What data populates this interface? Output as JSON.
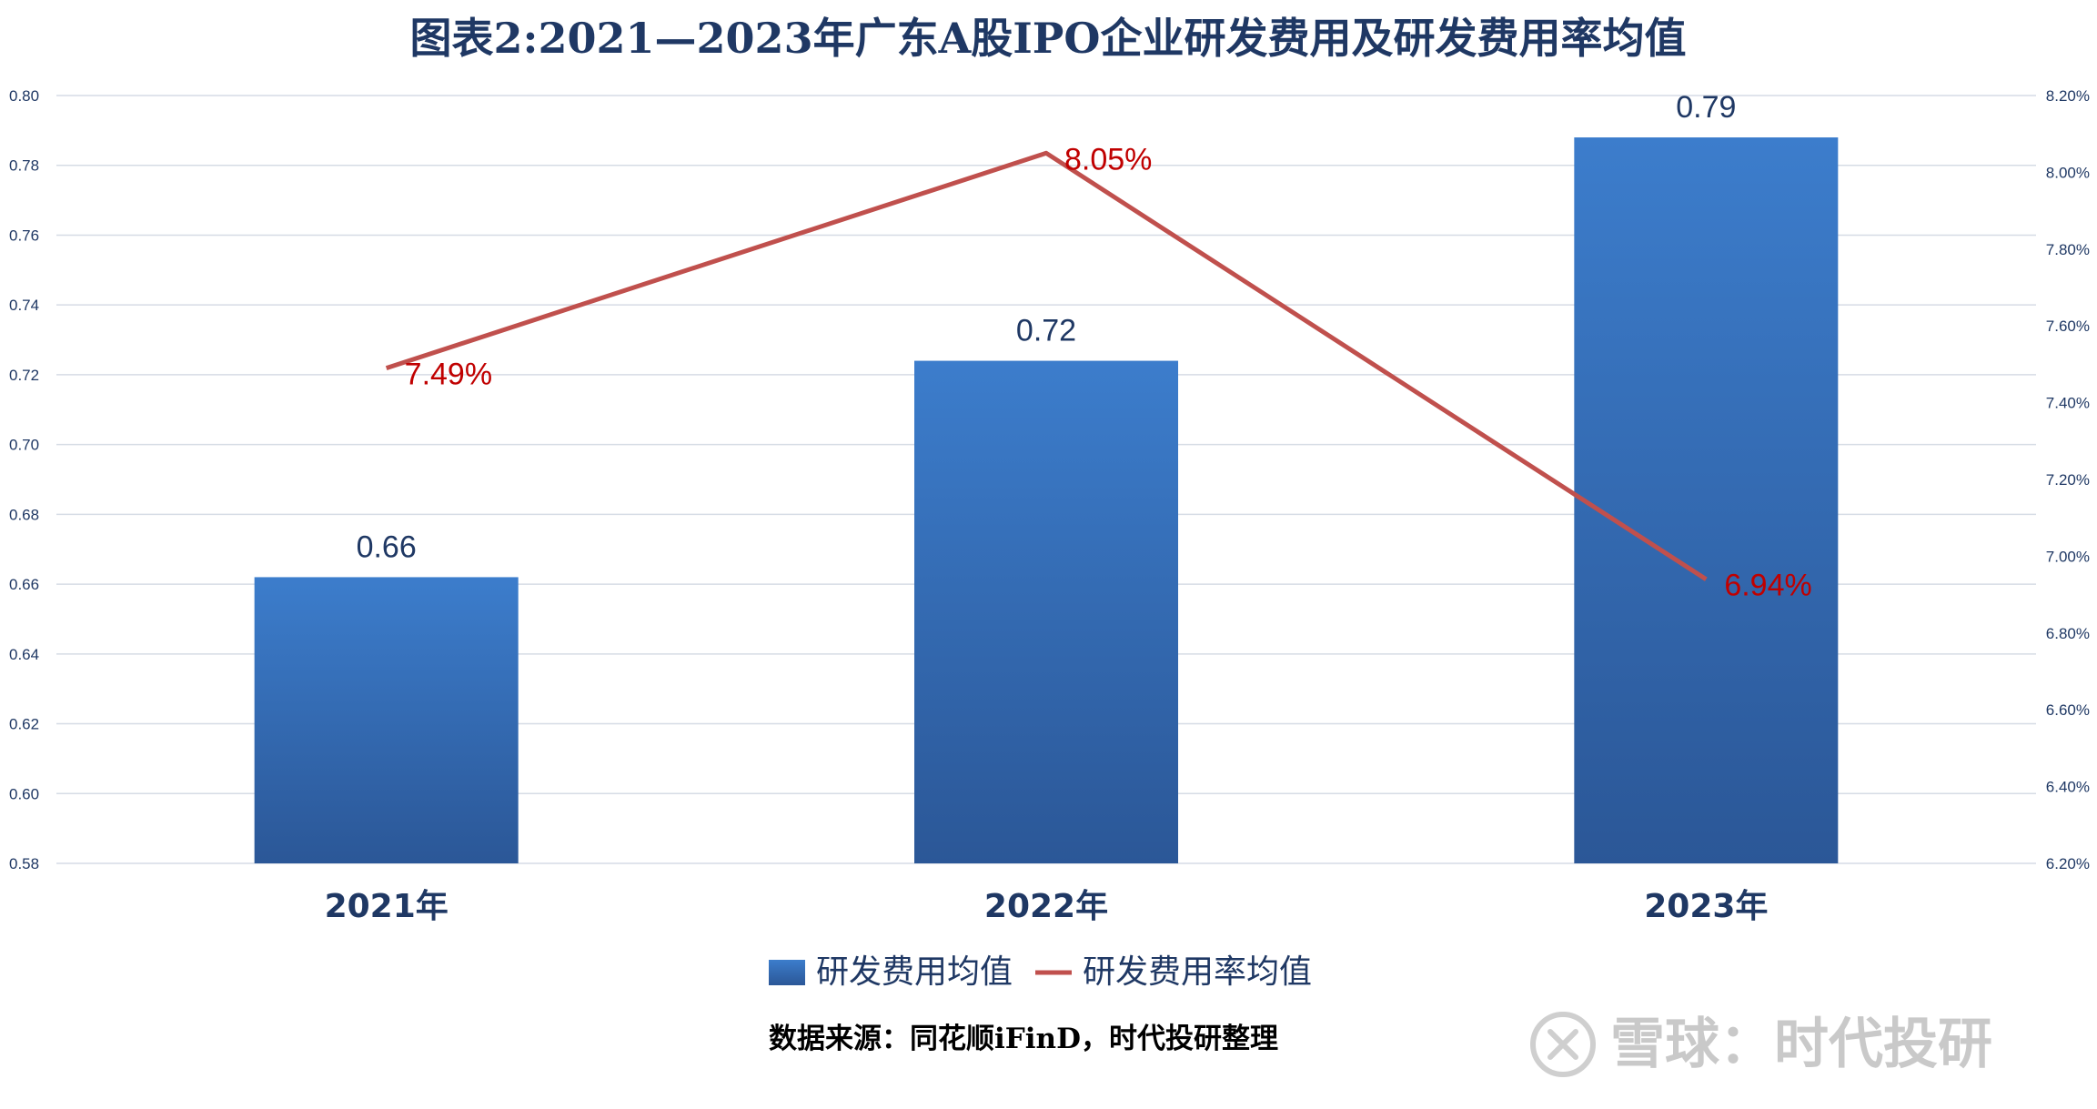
{
  "chart_data": {
    "type": "bar",
    "title": "图表2:2021—2023年广东A股IPO企业研发费用及研发费用率均值",
    "categories": [
      "2021年",
      "2022年",
      "2023年"
    ],
    "series": [
      {
        "name": "研发费用均值",
        "type": "bar",
        "axis": "left",
        "values": [
          0.662,
          0.724,
          0.788
        ],
        "labels": [
          "0.66",
          "0.72",
          "0.79"
        ],
        "color": "#3a78c6"
      },
      {
        "name": "研发费用率均值",
        "type": "line",
        "axis": "right",
        "values": [
          7.49,
          8.05,
          6.94
        ],
        "labels": [
          "7.49%",
          "8.05%",
          "6.94%"
        ],
        "color": "#c0504d"
      }
    ],
    "y_left": {
      "ylim": [
        0.58,
        0.8
      ],
      "ticks": [
        0.58,
        0.6,
        0.62,
        0.64,
        0.66,
        0.68,
        0.7,
        0.72,
        0.74,
        0.76,
        0.78,
        0.8
      ],
      "tick_labels": [
        "0.58",
        "0.60",
        "0.62",
        "0.64",
        "0.66",
        "0.68",
        "0.70",
        "0.72",
        "0.74",
        "0.76",
        "0.78",
        "0.80"
      ]
    },
    "y_right": {
      "ylim": [
        6.2,
        8.2
      ],
      "ticks": [
        6.2,
        6.4,
        6.6,
        6.8,
        7.0,
        7.2,
        7.4,
        7.6,
        7.8,
        8.0,
        8.2
      ],
      "tick_labels": [
        "6.20%",
        "6.40%",
        "6.60%",
        "6.80%",
        "7.00%",
        "7.20%",
        "7.40%",
        "7.60%",
        "7.80%",
        "8.00%",
        "8.20%"
      ]
    },
    "grid": true,
    "legend": "bottom"
  },
  "source_note": "数据来源：同花顺iFinD，时代投研整理",
  "watermark": "雪球：时代投研",
  "colors": {
    "bar_top": "#3c7dcc",
    "bar_bottom": "#2b5797",
    "line": "#c0504d",
    "line_label": "#c00000",
    "text": "#1f3864",
    "grid": "#d6dce5"
  }
}
